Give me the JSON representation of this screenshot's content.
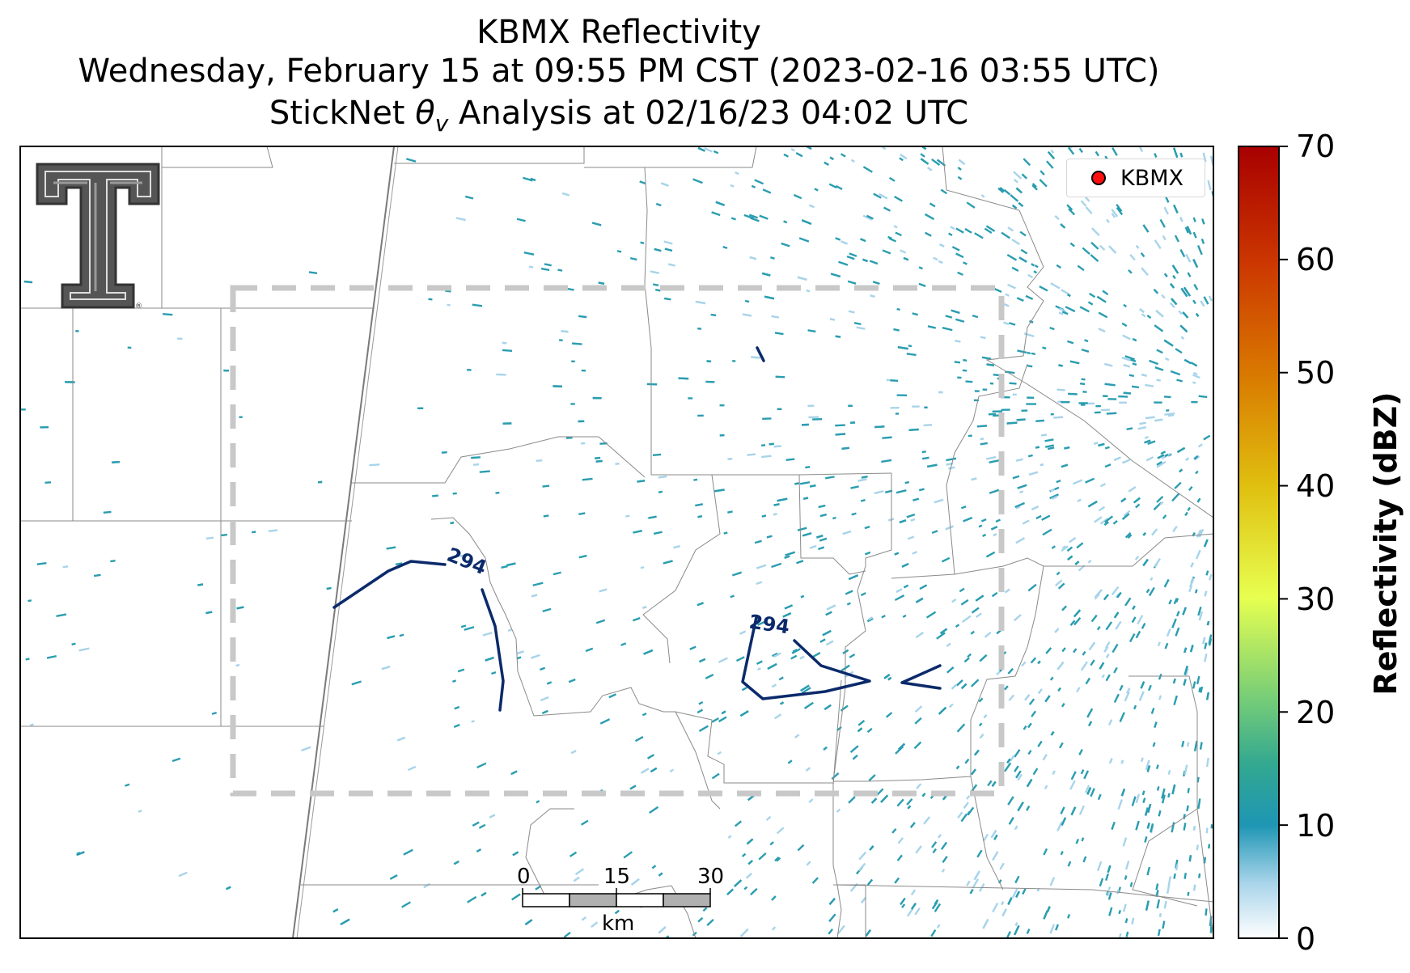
{
  "title": {
    "line1": "KBMX Reflectivity",
    "line2": "Wednesday, February 15 at 09:55 PM CST (2023-02-16 03:55 UTC)",
    "line3": "StickNet θv Analysis at 02/16/23 04:02 UTC"
  },
  "legend": {
    "marker_label": "KBMX",
    "marker_color": "#ff1010"
  },
  "colorbar": {
    "label": "Reflectivity (dBZ)",
    "ticks": [
      "0",
      "10",
      "20",
      "30",
      "40",
      "50",
      "60",
      "70"
    ],
    "colors": [
      "#ffffff",
      "#a8d4ea",
      "#1e96b4",
      "#33a890",
      "#74cc78",
      "#e7ff50",
      "#e0c010",
      "#d97a00",
      "#cc3800",
      "#a80000"
    ]
  },
  "contours": {
    "value_label": "294",
    "color": "#0b2a6b"
  },
  "scale_bar": {
    "ticks": [
      "0",
      "15",
      "30"
    ],
    "unit": "km"
  },
  "logo": {
    "name": "Texas Tech Double T",
    "mark": "®"
  },
  "colors": {
    "echo_main": "#2a9db0",
    "echo_light": "#a8d4ea",
    "boundary": "#8a8a8a",
    "analysis_box": "#c8c8c8"
  }
}
